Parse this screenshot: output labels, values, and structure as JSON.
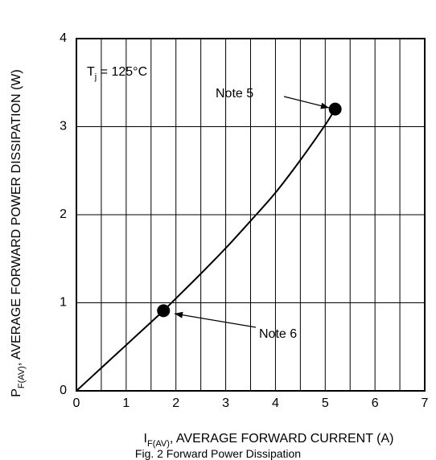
{
  "chart_data": {
    "type": "line",
    "xlabel": {
      "main": "I",
      "sub": "F(AV)",
      "rest": ", AVERAGE FORWARD CURRENT (A)"
    },
    "ylabel": {
      "main": "P",
      "sub": "F(AV)",
      "rest": ", AVERAGE FORWARD POWER DISSIPATION (W)"
    },
    "xlim": [
      0,
      7
    ],
    "ylim": [
      0,
      4
    ],
    "x_ticks": [
      "0",
      "1",
      "2",
      "3",
      "4",
      "5",
      "6",
      "7"
    ],
    "y_ticks": [
      "0",
      "1",
      "2",
      "3",
      "4"
    ],
    "grid": true,
    "series": [
      {
        "x": [
          0,
          0.5,
          1.0,
          1.5,
          1.75,
          2.0,
          2.5,
          3.0,
          3.5,
          4.0,
          4.5,
          5.0,
          5.2
        ],
        "y": [
          0,
          0.26,
          0.52,
          0.78,
          0.91,
          1.05,
          1.33,
          1.62,
          1.93,
          2.25,
          2.62,
          3.02,
          3.2
        ]
      }
    ],
    "markers": [
      {
        "x": 1.75,
        "y": 0.91,
        "label": "Note 6"
      },
      {
        "x": 5.2,
        "y": 3.2,
        "label": "Note 5"
      }
    ],
    "annotation": {
      "main": "T",
      "sub": "j",
      "rest": " = 125°C"
    }
  },
  "caption": "Fig. 2  Forward Power Dissipation"
}
